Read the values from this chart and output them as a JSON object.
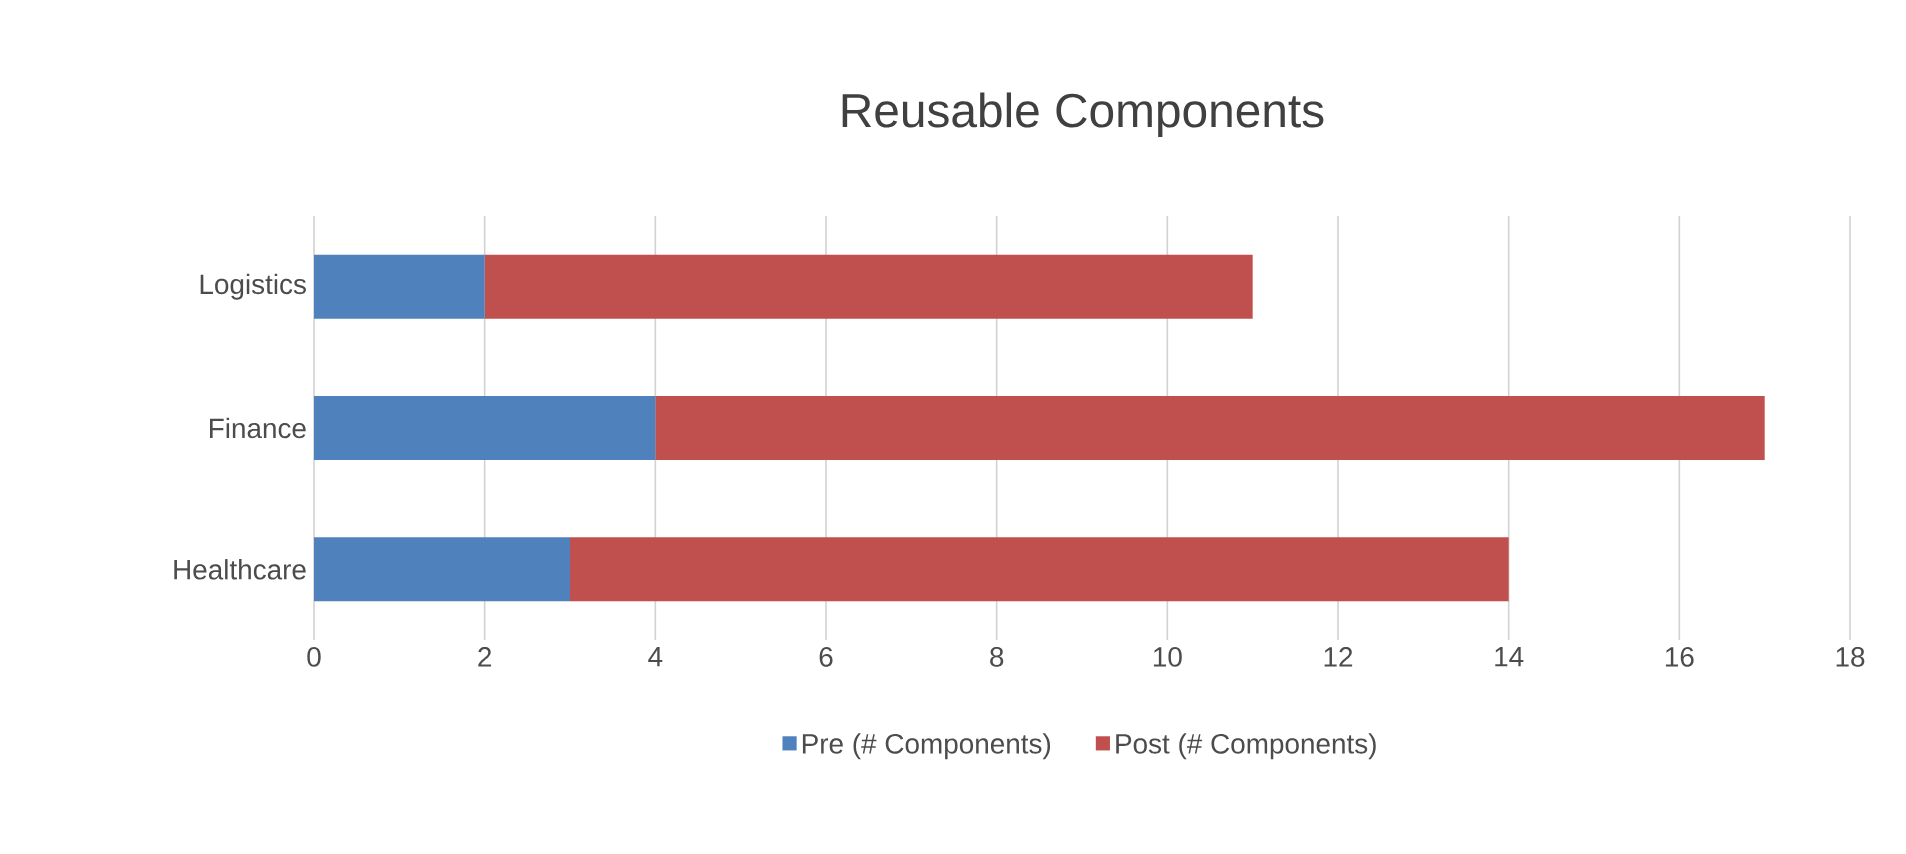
{
  "chart_data": {
    "type": "bar",
    "title": "Reusable Components",
    "orientation": "horizontal",
    "stacked": true,
    "categories": [
      "Logistics",
      "Finance",
      "Healthcare"
    ],
    "series": [
      {
        "name": "Pre (# Components)",
        "color": "#4f81bd",
        "values": [
          2,
          4,
          3
        ]
      },
      {
        "name": "Post (# Components)",
        "color": "#c0504d",
        "values": [
          9,
          13,
          11
        ]
      }
    ],
    "xlim": [
      0,
      18
    ],
    "xticks": [
      0,
      2,
      4,
      6,
      8,
      10,
      12,
      14,
      16,
      18
    ],
    "grid": "x",
    "legend": "bottom"
  }
}
